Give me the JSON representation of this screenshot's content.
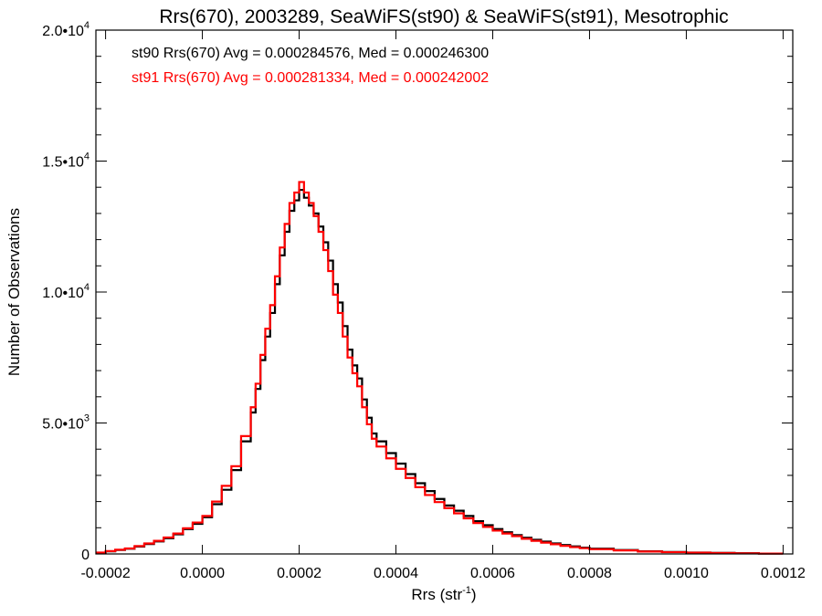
{
  "chart_data": {
    "type": "line",
    "title": "Rrs(670), 2003289, SeaWiFS(st90) & SeaWiFS(st91), Mesotrophic",
    "xlabel": "Rrs (str",
    "xlabel_sup": "-1",
    "xlabel_suffix": ")",
    "ylabel": "Number of Observations",
    "xlim": [
      -0.00022,
      0.00122
    ],
    "ylim": [
      0,
      20000
    ],
    "grid": false,
    "legend_position": "top-left",
    "x_ticks": [
      {
        "value": -0.0002,
        "label": "-0.0002"
      },
      {
        "value": 0.0,
        "label": "0.0000"
      },
      {
        "value": 0.0002,
        "label": "0.0002"
      },
      {
        "value": 0.0004,
        "label": "0.0004"
      },
      {
        "value": 0.0006,
        "label": "0.0006"
      },
      {
        "value": 0.0008,
        "label": "0.0008"
      },
      {
        "value": 0.001,
        "label": "0.0010"
      },
      {
        "value": 0.0012,
        "label": "0.0012"
      }
    ],
    "y_ticks": [
      {
        "value": 0,
        "base": "0",
        "exp": ""
      },
      {
        "value": 5000,
        "base": "5.0•10",
        "exp": "3"
      },
      {
        "value": 10000,
        "base": "1.0•10",
        "exp": "4"
      },
      {
        "value": 15000,
        "base": "1.5•10",
        "exp": "4"
      },
      {
        "value": 20000,
        "base": "2.0•10",
        "exp": "4"
      }
    ],
    "series": [
      {
        "name": "st90",
        "color": "#000000",
        "legend_text": "st90 Rrs(670) Avg = 0.000284576, Med = 0.000246300",
        "x": [
          -0.00022,
          -0.0002,
          -0.00018,
          -0.00016,
          -0.00014,
          -0.00012,
          -0.0001,
          -8e-05,
          -6e-05,
          -4e-05,
          -2e-05,
          0.0,
          2e-05,
          4e-05,
          6e-05,
          8e-05,
          0.0001,
          0.00011,
          0.00012,
          0.00013,
          0.00014,
          0.00015,
          0.00016,
          0.00017,
          0.00018,
          0.00019,
          0.0002,
          0.00021,
          0.00022,
          0.00023,
          0.00024,
          0.00025,
          0.00026,
          0.00027,
          0.00028,
          0.00029,
          0.0003,
          0.00031,
          0.00032,
          0.00033,
          0.00034,
          0.00035,
          0.00036,
          0.00038,
          0.0004,
          0.00042,
          0.00044,
          0.00046,
          0.00048,
          0.0005,
          0.00052,
          0.00054,
          0.00056,
          0.00058,
          0.0006,
          0.00062,
          0.00064,
          0.00066,
          0.00068,
          0.0007,
          0.00072,
          0.00074,
          0.00076,
          0.00078,
          0.0008,
          0.00085,
          0.0009,
          0.00095,
          0.001,
          0.00105,
          0.0011,
          0.00115,
          0.0012
        ],
        "y": [
          50,
          100,
          150,
          200,
          280,
          380,
          480,
          600,
          750,
          950,
          1150,
          1400,
          1900,
          2450,
          3200,
          4300,
          5400,
          6300,
          7400,
          8300,
          9200,
          10300,
          11400,
          12300,
          13100,
          13500,
          13900,
          13600,
          13300,
          13000,
          12500,
          11900,
          11200,
          10300,
          9600,
          8700,
          7800,
          7200,
          6700,
          5900,
          5200,
          4600,
          4300,
          3850,
          3450,
          3050,
          2700,
          2400,
          2100,
          1850,
          1650,
          1450,
          1250,
          1100,
          950,
          830,
          720,
          620,
          540,
          470,
          400,
          340,
          290,
          240,
          200,
          150,
          100,
          75,
          55,
          40,
          25,
          15,
          8
        ]
      },
      {
        "name": "st91",
        "color": "#ff0000",
        "legend_text": "st91 Rrs(670) Avg = 0.000281334, Med = 0.000242002",
        "x": [
          -0.00022,
          -0.0002,
          -0.00018,
          -0.00016,
          -0.00014,
          -0.00012,
          -0.0001,
          -8e-05,
          -6e-05,
          -4e-05,
          -2e-05,
          0.0,
          2e-05,
          4e-05,
          6e-05,
          8e-05,
          0.0001,
          0.00011,
          0.00012,
          0.00013,
          0.00014,
          0.00015,
          0.00016,
          0.00017,
          0.00018,
          0.00019,
          0.0002,
          0.00021,
          0.00022,
          0.00023,
          0.00024,
          0.00025,
          0.00026,
          0.00027,
          0.00028,
          0.00029,
          0.0003,
          0.00031,
          0.00032,
          0.00033,
          0.00034,
          0.00035,
          0.00036,
          0.00038,
          0.0004,
          0.00042,
          0.00044,
          0.00046,
          0.00048,
          0.0005,
          0.00052,
          0.00054,
          0.00056,
          0.00058,
          0.0006,
          0.00062,
          0.00064,
          0.00066,
          0.00068,
          0.0007,
          0.00072,
          0.00074,
          0.00076,
          0.00078,
          0.0008,
          0.00085,
          0.0009,
          0.00095,
          0.001,
          0.00105,
          0.0011,
          0.00115,
          0.0012
        ],
        "y": [
          55,
          110,
          160,
          210,
          300,
          400,
          500,
          630,
          780,
          980,
          1200,
          1450,
          2000,
          2600,
          3350,
          4500,
          5600,
          6500,
          7600,
          8600,
          9500,
          10600,
          11700,
          12600,
          13400,
          13800,
          14200,
          13800,
          13400,
          12900,
          12300,
          11600,
          10800,
          9900,
          9200,
          8300,
          7500,
          6900,
          6400,
          5600,
          4950,
          4400,
          4100,
          3650,
          3250,
          2900,
          2550,
          2250,
          1980,
          1750,
          1550,
          1360,
          1180,
          1030,
          890,
          780,
          680,
          580,
          500,
          430,
          370,
          310,
          260,
          220,
          180,
          135,
          92,
          68,
          50,
          35,
          22,
          13,
          7
        ]
      }
    ]
  }
}
